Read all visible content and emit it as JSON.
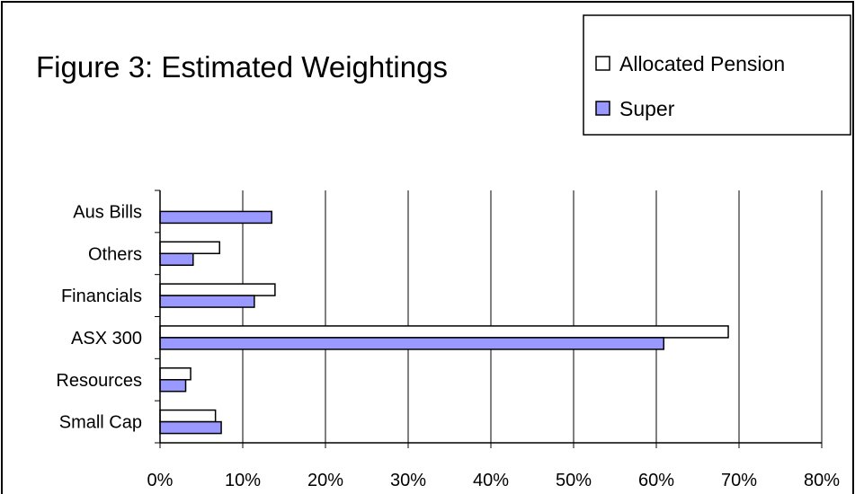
{
  "chart_data": {
    "type": "bar",
    "orientation": "horizontal",
    "title": "Figure 3: Estimated Weightings",
    "categories": [
      "Aus Bills",
      "Others",
      "Financials",
      "ASX 300",
      "Resources",
      "Small Cap"
    ],
    "series": [
      {
        "name": "Allocated Pension",
        "color": "#ffffff",
        "values": [
          0,
          7.2,
          13.9,
          68.7,
          3.7,
          6.7
        ]
      },
      {
        "name": "Super",
        "color": "#9999ff",
        "values": [
          13.5,
          4.0,
          11.4,
          60.9,
          3.1,
          7.4
        ]
      }
    ],
    "xlim": [
      0,
      80
    ],
    "x_ticks": [
      0,
      10,
      20,
      30,
      40,
      50,
      60,
      70,
      80
    ],
    "x_tick_labels": [
      "0%",
      "10%",
      "20%",
      "30%",
      "40%",
      "50%",
      "60%",
      "70%",
      "80%"
    ],
    "xlabel": "",
    "ylabel": "",
    "grid": "vertical",
    "legend_position": "top-right"
  }
}
